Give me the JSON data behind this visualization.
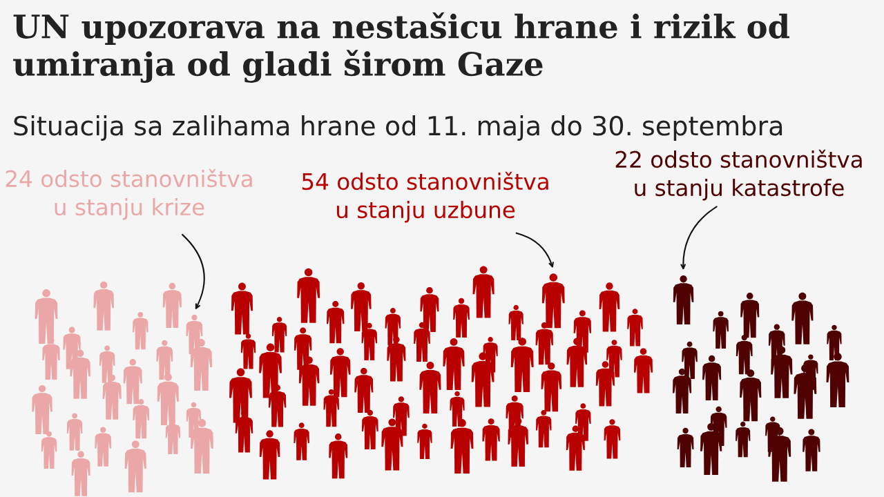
{
  "chart_data": {
    "type": "other",
    "title": "UN upozorava na nestašicu hrane i rizik od\numiranja od gladi širom Gaze",
    "subtitle": "Situacija sa zalihama hrane od 11. maja do 30. septembra",
    "categories": [
      "u stanju krize",
      "u stanju uzbune",
      "u stanju katastrofe"
    ],
    "values": [
      24,
      54,
      22
    ],
    "value_labels": [
      "24 odsto stanovništva",
      "54 odsto stanovništva",
      "22 odsto stanovništva"
    ],
    "colors": [
      "#eba7a7",
      "#b80000",
      "#4f0000"
    ]
  }
}
